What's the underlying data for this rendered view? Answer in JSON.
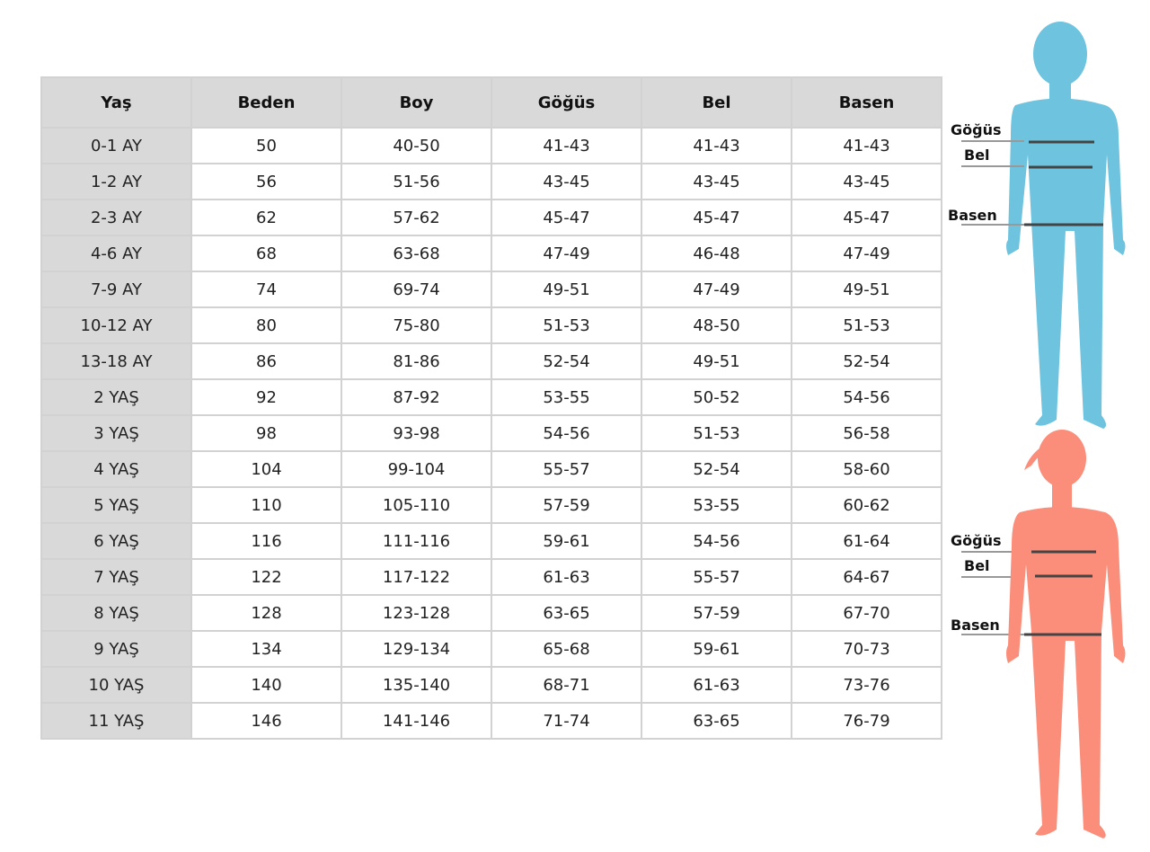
{
  "table": {
    "headers": [
      "Yaş",
      "Beden",
      "Boy",
      "Göğüs",
      "Bel",
      "Basen"
    ],
    "rows": [
      [
        "0-1 AY",
        "50",
        "40-50",
        "41-43",
        "41-43",
        "41-43"
      ],
      [
        "1-2 AY",
        "56",
        "51-56",
        "43-45",
        "43-45",
        "43-45"
      ],
      [
        "2-3 AY",
        "62",
        "57-62",
        "45-47",
        "45-47",
        "45-47"
      ],
      [
        "4-6 AY",
        "68",
        "63-68",
        "47-49",
        "46-48",
        "47-49"
      ],
      [
        "7-9 AY",
        "74",
        "69-74",
        "49-51",
        "47-49",
        "49-51"
      ],
      [
        "10-12 AY",
        "80",
        "75-80",
        "51-53",
        "48-50",
        "51-53"
      ],
      [
        "13-18 AY",
        "86",
        "81-86",
        "52-54",
        "49-51",
        "52-54"
      ],
      [
        "2 YAŞ",
        "92",
        "87-92",
        "53-55",
        "50-52",
        "54-56"
      ],
      [
        "3 YAŞ",
        "98",
        "93-98",
        "54-56",
        "51-53",
        "56-58"
      ],
      [
        "4 YAŞ",
        "104",
        "99-104",
        "55-57",
        "52-54",
        "58-60"
      ],
      [
        "5 YAŞ",
        "110",
        "105-110",
        "57-59",
        "53-55",
        "60-62"
      ],
      [
        "6 YAŞ",
        "116",
        "111-116",
        "59-61",
        "54-56",
        "61-64"
      ],
      [
        "7 YAŞ",
        "122",
        "117-122",
        "61-63",
        "55-57",
        "64-67"
      ],
      [
        "8 YAŞ",
        "128",
        "123-128",
        "63-65",
        "57-59",
        "67-70"
      ],
      [
        "9 YAŞ",
        "134",
        "129-134",
        "65-68",
        "59-61",
        "70-73"
      ],
      [
        "10 YAŞ",
        "140",
        "135-140",
        "68-71",
        "61-63",
        "73-76"
      ],
      [
        "11 YAŞ",
        "146",
        "141-146",
        "71-74",
        "63-65",
        "76-79"
      ]
    ]
  },
  "figures": {
    "boy": {
      "color": "#6ec3df",
      "labels": {
        "chest": "Göğüs",
        "waist": "Bel",
        "hip": "Basen"
      }
    },
    "girl": {
      "color": "#fb8e7b",
      "labels": {
        "chest": "Göğüs",
        "waist": "Bel",
        "hip": "Basen"
      }
    }
  }
}
